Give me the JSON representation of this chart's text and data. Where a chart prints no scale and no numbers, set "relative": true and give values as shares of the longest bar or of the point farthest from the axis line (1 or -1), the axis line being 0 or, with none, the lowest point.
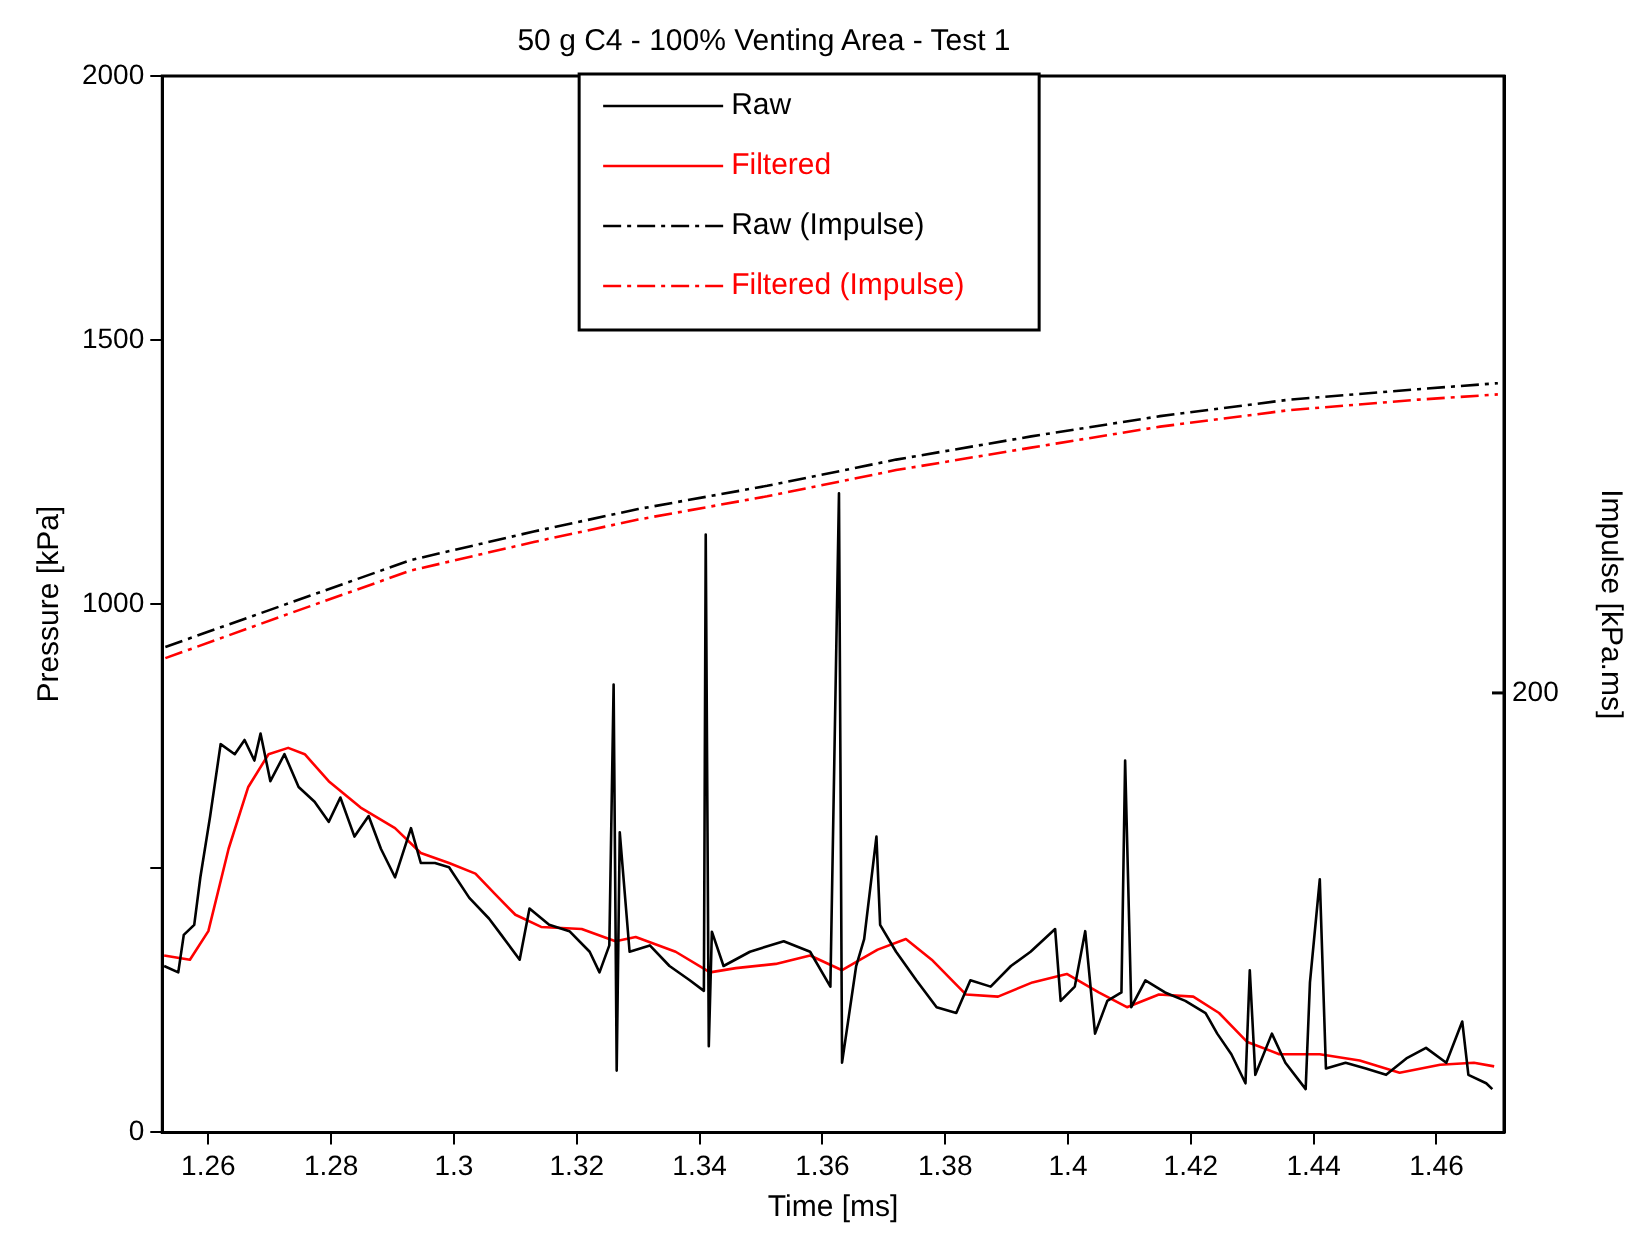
{
  "chart_data": [
    {
      "type": "line",
      "title": "50 g C4 - 100% Venting Area - Test 1",
      "xlabel": "Time [ms]",
      "ylabel": "Pressure [kPa]",
      "xlim": [
        1.2525,
        1.471
      ],
      "xticks": [
        1.26,
        1.28,
        1.3,
        1.32,
        1.34,
        1.36,
        1.38,
        1.4,
        1.42,
        1.44,
        1.46
      ],
      "ylim": [
        0,
        2000
      ],
      "yticks": [
        0,
        {
          "value": 500,
          "label": null
        },
        1000,
        1500,
        2000
      ],
      "grid": false,
      "legend": "top",
      "marker": "none",
      "series": [
        {
          "name": "Raw",
          "color": "#000000",
          "line_style": "solid",
          "x": [
            1.2528,
            1.2551,
            1.256,
            1.2577,
            1.2587,
            1.2603,
            1.262,
            1.2643,
            1.2659,
            1.2675,
            1.2685,
            1.2701,
            1.2724,
            1.2747,
            1.2773,
            1.2796,
            1.2815,
            1.2838,
            1.2861,
            1.2881,
            1.2904,
            1.293,
            1.2946,
            1.2969,
            1.2992,
            1.3025,
            1.3057,
            1.3077,
            1.3107,
            1.3123,
            1.3155,
            1.3188,
            1.3221,
            1.3237,
            1.3253,
            1.326,
            1.3265,
            1.327,
            1.3286,
            1.3319,
            1.3351,
            1.3384,
            1.3407,
            1.341,
            1.3415,
            1.342,
            1.3439,
            1.3482,
            1.3537,
            1.358,
            1.3613,
            1.3627,
            1.3632,
            1.3655,
            1.3668,
            1.3688,
            1.3694,
            1.372,
            1.3753,
            1.3786,
            1.3818,
            1.3841,
            1.3874,
            1.3907,
            1.3939,
            1.3979,
            1.3988,
            1.4011,
            1.4028,
            1.4044,
            1.4064,
            1.4087,
            1.4093,
            1.4103,
            1.4126,
            1.4158,
            1.4191,
            1.4224,
            1.4243,
            1.4266,
            1.4289,
            1.4296,
            1.4305,
            1.4332,
            1.4354,
            1.4387,
            1.4394,
            1.441,
            1.442,
            1.4452,
            1.4485,
            1.4518,
            1.4551,
            1.4583,
            1.4616,
            1.4642,
            1.4652,
            1.4681,
            1.4691
          ],
          "values": [
            315,
            303,
            374,
            393,
            483,
            599,
            735,
            716,
            743,
            704,
            755,
            665,
            716,
            654,
            626,
            588,
            634,
            560,
            599,
            537,
            483,
            576,
            510,
            510,
            502,
            444,
            405,
            374,
            327,
            424,
            393,
            381,
            342,
            303,
            354,
            848,
            117,
            568,
            342,
            354,
            315,
            288,
            268,
            1132,
            163,
            380,
            315,
            342,
            362,
            342,
            276,
            1210,
            132,
            315,
            366,
            560,
            393,
            342,
            288,
            237,
            226,
            288,
            276,
            315,
            342,
            385,
            249,
            276,
            381,
            187,
            249,
            265,
            704,
            237,
            288,
            265,
            249,
            226,
            187,
            148,
            93,
            307,
            109,
            187,
            132,
            82,
            284,
            479,
            121,
            132,
            121,
            109,
            140,
            160,
            132,
            210,
            109,
            93,
            82
          ]
        },
        {
          "name": "Filtered",
          "color": "#ff0000",
          "line_style": "solid",
          "x": [
            1.2528,
            1.257,
            1.26,
            1.2633,
            1.2665,
            1.2698,
            1.273,
            1.2757,
            1.2796,
            1.2848,
            1.2904,
            1.2946,
            1.2992,
            1.3035,
            1.3067,
            1.31,
            1.3142,
            1.3208,
            1.3263,
            1.3296,
            1.3361,
            1.3417,
            1.3459,
            1.3524,
            1.358,
            1.3632,
            1.369,
            1.3736,
            1.3778,
            1.3834,
            1.3886,
            1.3942,
            1.3998,
            1.405,
            1.4096,
            1.4148,
            1.4204,
            1.4246,
            1.4292,
            1.4344,
            1.441,
            1.4475,
            1.454,
            1.4606,
            1.4661,
            1.4694
          ],
          "values": [
            335,
            327,
            381,
            537,
            654,
            716,
            728,
            716,
            665,
            615,
            576,
            529,
            510,
            490,
            451,
            412,
            389,
            385,
            362,
            370,
            342,
            303,
            311,
            319,
            335,
            307,
            346,
            366,
            327,
            261,
            257,
            284,
            300,
            265,
            237,
            261,
            257,
            226,
            171,
            148,
            148,
            136,
            113,
            128,
            132,
            125
          ]
        }
      ]
    },
    {
      "type": "line",
      "relative": true,
      "y2label": "Impulse [kPa.ms]",
      "annotations": [
        "200"
      ],
      "xlim": [
        1.2525,
        1.471
      ],
      "tick_labels": false,
      "legend": "top",
      "marker": "none",
      "series": [
        {
          "name": "Raw (Impulse)",
          "color": "#000000",
          "line_style": "dashed",
          "x": [
            1.253,
            1.273,
            1.293,
            1.313,
            1.33,
            1.351,
            1.372,
            1.394,
            1.415,
            1.436,
            1.457,
            1.47
          ],
          "values": [
            0.648,
            0.706,
            0.764,
            0.802,
            0.832,
            0.863,
            0.898,
            0.929,
            0.956,
            0.978,
            0.992,
            1
          ]
        },
        {
          "name": "Filtered (Impulse)",
          "color": "#ff0000",
          "line_style": "dashed",
          "x": [
            1.253,
            1.273,
            1.293,
            1.313,
            1.33,
            1.351,
            1.372,
            1.394,
            1.415,
            1.436,
            1.457,
            1.47
          ],
          "values": [
            0.633,
            0.692,
            0.75,
            0.788,
            0.818,
            0.849,
            0.884,
            0.914,
            0.942,
            0.964,
            0.978,
            0.985
          ]
        }
      ]
    }
  ]
}
